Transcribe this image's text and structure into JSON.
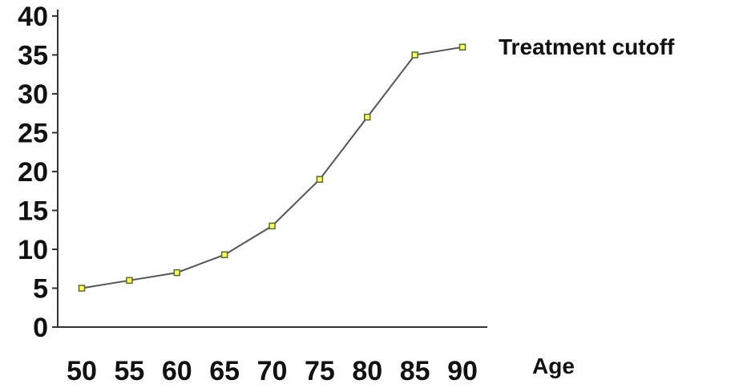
{
  "chart_data": {
    "type": "line",
    "title": "",
    "xlabel": "Age",
    "ylabel": "",
    "x": [
      50,
      55,
      60,
      65,
      70,
      75,
      80,
      85,
      90
    ],
    "series": [
      {
        "values": [
          5,
          6,
          7,
          9.3,
          13,
          19,
          27,
          35,
          36
        ]
      }
    ],
    "xticks": [
      "50",
      "55",
      "60",
      "65",
      "70",
      "75",
      "80",
      "85",
      "90"
    ],
    "yticks": [
      "0",
      "5",
      "10",
      "15",
      "20",
      "25",
      "30",
      "35",
      "40"
    ],
    "ylim": [
      0,
      40
    ],
    "annotation": "Treatment cutoff",
    "grid": false,
    "colors": {
      "line": "#555555",
      "marker_fill": "#ffff66",
      "marker_stroke": "#556b2f",
      "axis": "#333333",
      "text": "#111111"
    }
  }
}
